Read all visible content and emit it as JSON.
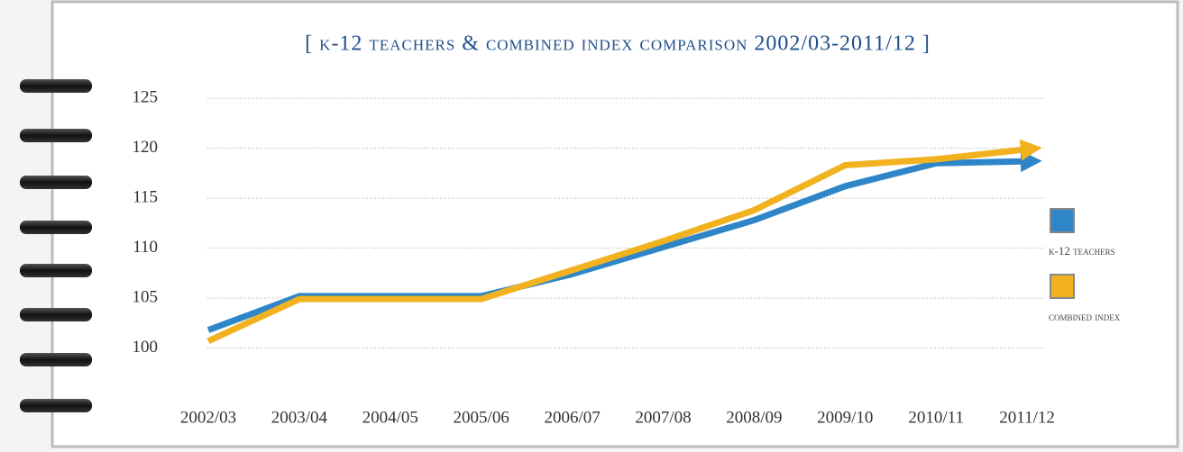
{
  "chart_data": {
    "type": "line",
    "title": "[ k-12 teachers & combined index comparison 2002/03-2011/12 ]",
    "categories": [
      "2002/03",
      "2003/04",
      "2004/05",
      "2005/06",
      "2006/07",
      "2007/08",
      "2008/09",
      "2009/10",
      "2010/11",
      "2011/12"
    ],
    "series": [
      {
        "name": "k-12 teachers",
        "color": "#2e86c8",
        "values": [
          101.8,
          105.2,
          105.2,
          105.2,
          107.4,
          110.1,
          112.8,
          116.2,
          118.5,
          118.7
        ]
      },
      {
        "name": "combined index",
        "color": "#f2b21f",
        "values": [
          100.7,
          104.9,
          104.9,
          104.9,
          107.8,
          110.7,
          113.8,
          118.3,
          118.9,
          119.9
        ]
      }
    ],
    "ylim": [
      95,
      127
    ],
    "yticks": [
      100,
      105,
      110,
      115,
      120,
      125
    ],
    "grid": true
  }
}
